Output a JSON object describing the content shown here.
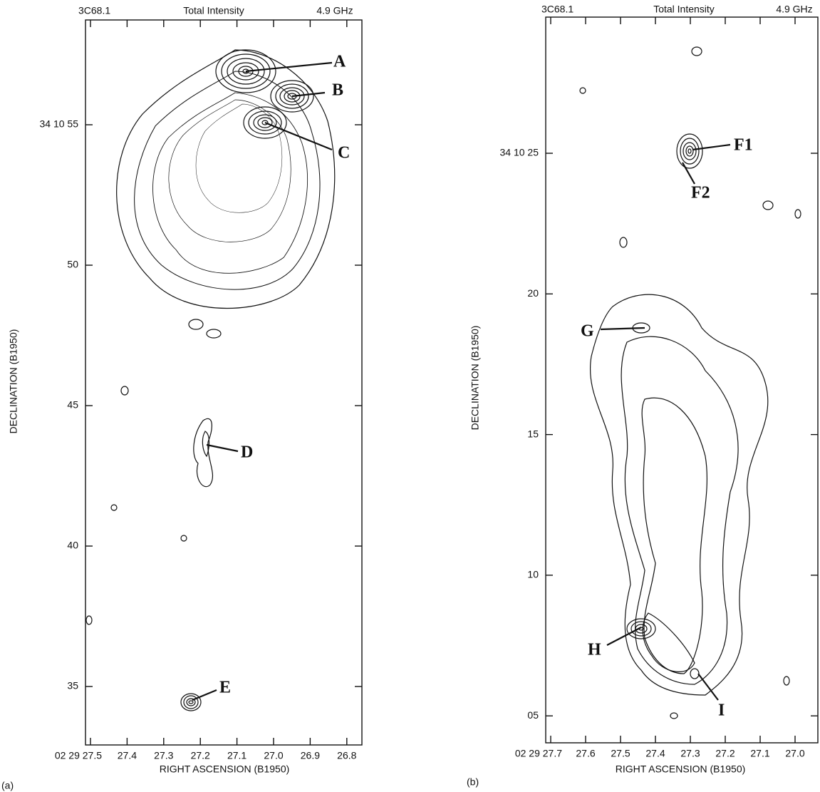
{
  "panels": [
    {
      "label": "(a)",
      "header": {
        "source": "3C68.1",
        "title": "Total Intensity",
        "frequency": "4.9 GHz"
      },
      "x_axis_label": "RIGHT ASCENSION (B1950)",
      "y_axis_label": "DECLINATION (B1950)",
      "xtick_labels": [
        "02 29 27.5",
        "27.4",
        "27.3",
        "27.2",
        "27.1",
        "27.0",
        "26.9",
        "26.8"
      ],
      "ytick_labels": [
        "34 10 55",
        "50",
        "45",
        "40",
        "35"
      ],
      "annotations": [
        "A",
        "B",
        "C",
        "D",
        "E"
      ]
    },
    {
      "label": "(b)",
      "header": {
        "source": "3C68.1",
        "title": "Total Intensity",
        "frequency": "4.9 GHz"
      },
      "x_axis_label": "RIGHT ASCENSION (B1950)",
      "y_axis_label": "DECLINATION (B1950)",
      "xtick_labels": [
        "02 29 27.7",
        "27.6",
        "27.5",
        "27.4",
        "27.3",
        "27.2",
        "27.1",
        "27.0"
      ],
      "ytick_labels": [
        "34 10 25",
        "20",
        "15",
        "10",
        "05"
      ],
      "annotations": [
        "F1",
        "F2",
        "G",
        "H",
        "I"
      ]
    }
  ]
}
